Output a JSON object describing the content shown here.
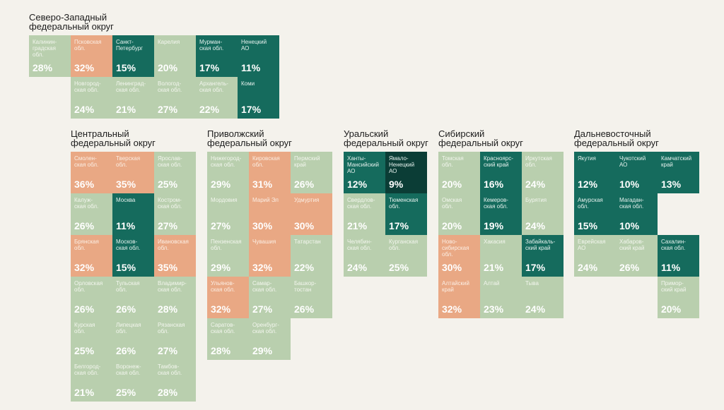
{
  "colors": {
    "light": "#b9cfae",
    "orange": "#e9a884",
    "teal": "#156b5d",
    "dark": "#0b3d36"
  },
  "chart_data": {
    "type": "table",
    "districts": [
      {
        "title": "Северо-Западный\nфедеральный округ",
        "regions": [
          {
            "name": "Калинин-\nградская\nобл.",
            "value": "28%",
            "col": 0,
            "row": 0,
            "color": "light"
          },
          {
            "name": "Псковская\nобл.",
            "value": "32%",
            "col": 1,
            "row": 0,
            "color": "orange"
          },
          {
            "name": "Санкт-\nПетербург",
            "value": "15%",
            "col": 2,
            "row": 0,
            "color": "teal"
          },
          {
            "name": "Карелия",
            "value": "20%",
            "col": 3,
            "row": 0,
            "color": "light"
          },
          {
            "name": "Мурман-\nская обл.",
            "value": "17%",
            "col": 4,
            "row": 0,
            "color": "teal"
          },
          {
            "name": "Ненецкий\nАО",
            "value": "11%",
            "col": 5,
            "row": 0,
            "color": "teal"
          },
          {
            "name": "Новгород-\nская обл.",
            "value": "24%",
            "col": 1,
            "row": 1,
            "color": "light"
          },
          {
            "name": "Ленинград-\nская обл.",
            "value": "21%",
            "col": 2,
            "row": 1,
            "color": "light"
          },
          {
            "name": "Вологод-\nская обл.",
            "value": "27%",
            "col": 3,
            "row": 1,
            "color": "light"
          },
          {
            "name": "Архангель-\nская обл.",
            "value": "22%",
            "col": 4,
            "row": 1,
            "color": "light"
          },
          {
            "name": "Коми",
            "value": "17%",
            "col": 5,
            "row": 1,
            "color": "teal"
          }
        ]
      },
      {
        "title": "Центральный\nфедеральный округ",
        "regions": [
          {
            "name": "Смолен-\nская обл.",
            "value": "36%",
            "col": 0,
            "row": 0,
            "color": "orange"
          },
          {
            "name": "Тверская\nобл.",
            "value": "35%",
            "col": 1,
            "row": 0,
            "color": "orange"
          },
          {
            "name": "Ярослав-\nская обл.",
            "value": "25%",
            "col": 2,
            "row": 0,
            "color": "light"
          },
          {
            "name": "Калуж-\nская обл.",
            "value": "26%",
            "col": 0,
            "row": 1,
            "color": "light"
          },
          {
            "name": "Москва",
            "value": "11%",
            "col": 1,
            "row": 1,
            "color": "teal"
          },
          {
            "name": "Костром-\nская обл.",
            "value": "27%",
            "col": 2,
            "row": 1,
            "color": "light"
          },
          {
            "name": "Брянская\nобл.",
            "value": "32%",
            "col": 0,
            "row": 2,
            "color": "orange"
          },
          {
            "name": "Москов-\nская обл.",
            "value": "15%",
            "col": 1,
            "row": 2,
            "color": "teal"
          },
          {
            "name": "Ивановская\nобл.",
            "value": "35%",
            "col": 2,
            "row": 2,
            "color": "orange"
          },
          {
            "name": "Орловская\nобл.",
            "value": "26%",
            "col": 0,
            "row": 3,
            "color": "light"
          },
          {
            "name": "Тульская\nобл.",
            "value": "26%",
            "col": 1,
            "row": 3,
            "color": "light"
          },
          {
            "name": "Владимир-\nская обл.",
            "value": "28%",
            "col": 2,
            "row": 3,
            "color": "light"
          },
          {
            "name": "Курская\nобл.",
            "value": "25%",
            "col": 0,
            "row": 4,
            "color": "light"
          },
          {
            "name": "Липецкая\nобл.",
            "value": "26%",
            "col": 1,
            "row": 4,
            "color": "light"
          },
          {
            "name": "Рязанская\nобл.",
            "value": "27%",
            "col": 2,
            "row": 4,
            "color": "light"
          },
          {
            "name": "Белгород-\nская обл.",
            "value": "21%",
            "col": 0,
            "row": 5,
            "color": "light"
          },
          {
            "name": "Воронеж-\nская обл.",
            "value": "25%",
            "col": 1,
            "row": 5,
            "color": "light"
          },
          {
            "name": "Тамбов-\nская обл.",
            "value": "28%",
            "col": 2,
            "row": 5,
            "color": "light"
          }
        ]
      },
      {
        "title": "Приволжский\nфедеральный округ",
        "regions": [
          {
            "name": "Нижегород-\nская обл.",
            "value": "29%",
            "col": 0,
            "row": 0,
            "color": "light"
          },
          {
            "name": "Кировская\nобл.",
            "value": "31%",
            "col": 1,
            "row": 0,
            "color": "orange"
          },
          {
            "name": "Пермский\nкрай",
            "value": "26%",
            "col": 2,
            "row": 0,
            "color": "light"
          },
          {
            "name": "Мордовия",
            "value": "27%",
            "col": 0,
            "row": 1,
            "color": "light"
          },
          {
            "name": "Марий Эл",
            "value": "30%",
            "col": 1,
            "row": 1,
            "color": "orange"
          },
          {
            "name": "Удмуртия",
            "value": "30%",
            "col": 2,
            "row": 1,
            "color": "orange"
          },
          {
            "name": "Пензенская\nобл.",
            "value": "29%",
            "col": 0,
            "row": 2,
            "color": "light"
          },
          {
            "name": "Чувашия",
            "value": "32%",
            "col": 1,
            "row": 2,
            "color": "orange"
          },
          {
            "name": "Татарстан",
            "value": "22%",
            "col": 2,
            "row": 2,
            "color": "light"
          },
          {
            "name": "Ульянов-\nская обл.",
            "value": "32%",
            "col": 0,
            "row": 3,
            "color": "orange"
          },
          {
            "name": "Самар-\nская обл.",
            "value": "27%",
            "col": 1,
            "row": 3,
            "color": "light"
          },
          {
            "name": "Башкор-\nтостан",
            "value": "26%",
            "col": 2,
            "row": 3,
            "color": "light"
          },
          {
            "name": "Саратов-\nская обл.",
            "value": "28%",
            "col": 0,
            "row": 4,
            "color": "light"
          },
          {
            "name": "Оренбург-\nская обл.",
            "value": "29%",
            "col": 1,
            "row": 4,
            "color": "light"
          }
        ]
      },
      {
        "title": "Уральский\nфедеральный округ",
        "regions": [
          {
            "name": "Ханты-\nМансийский\nАО",
            "value": "12%",
            "col": 0,
            "row": 0,
            "color": "teal"
          },
          {
            "name": "Ямало-\nНенецкий\nАО",
            "value": "9%",
            "col": 1,
            "row": 0,
            "color": "dark"
          },
          {
            "name": "Свердлов-\nская обл.",
            "value": "21%",
            "col": 0,
            "row": 1,
            "color": "light"
          },
          {
            "name": "Тюменская\nобл.",
            "value": "17%",
            "col": 1,
            "row": 1,
            "color": "teal"
          },
          {
            "name": "Челябин-\nская обл.",
            "value": "24%",
            "col": 0,
            "row": 2,
            "color": "light"
          },
          {
            "name": "Курганская\nобл.",
            "value": "25%",
            "col": 1,
            "row": 2,
            "color": "light"
          }
        ]
      },
      {
        "title": "Сибирский\nфедеральный округ",
        "regions": [
          {
            "name": "Томская\nобл.",
            "value": "20%",
            "col": 0,
            "row": 0,
            "color": "light"
          },
          {
            "name": "Красноярс-\nский край",
            "value": "16%",
            "col": 1,
            "row": 0,
            "color": "teal"
          },
          {
            "name": "Иркутская\nобл.",
            "value": "24%",
            "col": 2,
            "row": 0,
            "color": "light"
          },
          {
            "name": "Омская\nобл.",
            "value": "20%",
            "col": 0,
            "row": 1,
            "color": "light"
          },
          {
            "name": "Кемеров-\nская обл.",
            "value": "19%",
            "col": 1,
            "row": 1,
            "color": "teal"
          },
          {
            "name": "Бурятия",
            "value": "24%",
            "col": 2,
            "row": 1,
            "color": "light"
          },
          {
            "name": "Ново-\nсибирская\nобл.",
            "value": "30%",
            "col": 0,
            "row": 2,
            "color": "orange"
          },
          {
            "name": "Хакасия",
            "value": "21%",
            "col": 1,
            "row": 2,
            "color": "light"
          },
          {
            "name": "Забайкаль-\nский край",
            "value": "17%",
            "col": 2,
            "row": 2,
            "color": "teal"
          },
          {
            "name": "Алтайский\nкрай",
            "value": "32%",
            "col": 0,
            "row": 3,
            "color": "orange"
          },
          {
            "name": "Алтай",
            "value": "23%",
            "col": 1,
            "row": 3,
            "color": "light"
          },
          {
            "name": "Тыва",
            "value": "24%",
            "col": 2,
            "row": 3,
            "color": "light"
          }
        ]
      },
      {
        "title": "Дальневосточный\nфедеральный округ",
        "regions": [
          {
            "name": "Якутия",
            "value": "12%",
            "col": 0,
            "row": 0,
            "color": "teal"
          },
          {
            "name": "Чукотский\nАО",
            "value": "10%",
            "col": 1,
            "row": 0,
            "color": "teal"
          },
          {
            "name": "Камчатский\nкрай",
            "value": "13%",
            "col": 2,
            "row": 0,
            "color": "teal"
          },
          {
            "name": "Амурская\nобл.",
            "value": "15%",
            "col": 0,
            "row": 1,
            "color": "teal"
          },
          {
            "name": "Магадан-\nская обл.",
            "value": "10%",
            "col": 1,
            "row": 1,
            "color": "teal"
          },
          {
            "name": "Еврейская\nАО",
            "value": "24%",
            "col": 0,
            "row": 2,
            "color": "light"
          },
          {
            "name": "Хабаров-\nский край",
            "value": "26%",
            "col": 1,
            "row": 2,
            "color": "light"
          },
          {
            "name": "Сахалин-\nская обл.",
            "value": "11%",
            "col": 2,
            "row": 2,
            "color": "teal"
          },
          {
            "name": "Примор-\nский край",
            "value": "20%",
            "col": 2,
            "row": 3,
            "color": "light"
          }
        ]
      }
    ]
  }
}
